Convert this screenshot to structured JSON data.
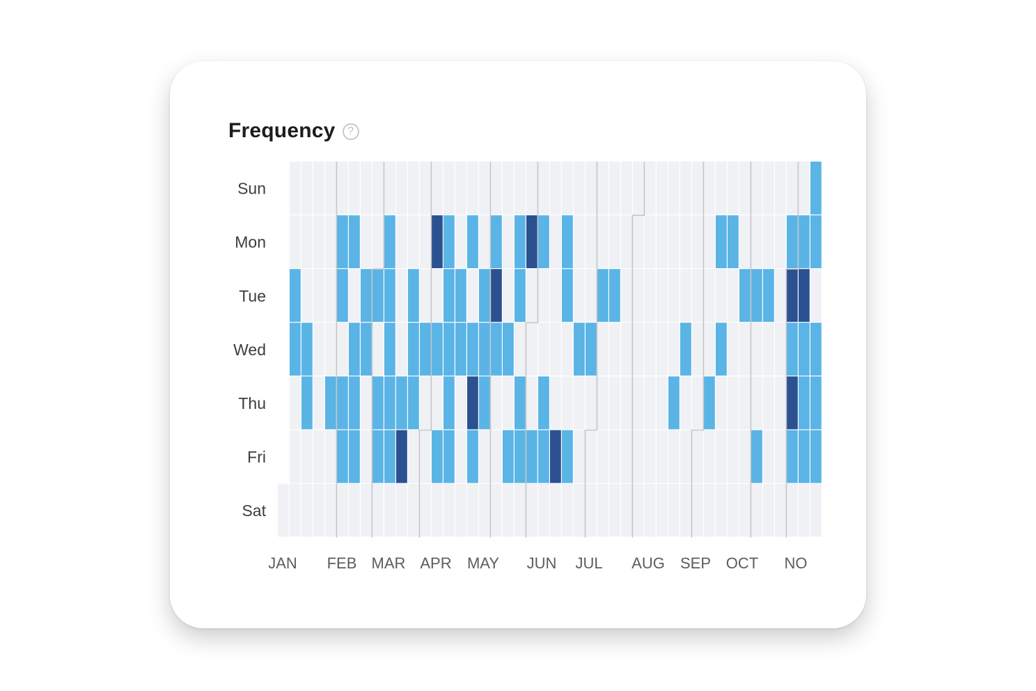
{
  "card": {
    "title": "Frequency",
    "help_icon": "question-circle-icon",
    "help_glyph": "?"
  },
  "chart_data": {
    "type": "heatmap",
    "title": "Frequency",
    "y_categories": [
      "Sun",
      "Mon",
      "Tue",
      "Wed",
      "Thu",
      "Fri",
      "Sat"
    ],
    "x_tick_labels": [
      "JAN",
      "FEB",
      "MAR",
      "APR",
      "MAY",
      "JUN",
      "JUL",
      "AUG",
      "SEP",
      "OCT",
      "NO"
    ],
    "weeks": 45,
    "legend": "none",
    "levels": {
      "0": "no activity",
      "1": "activity",
      "2": "high activity"
    },
    "colors": {
      "empty": "#eff1f5",
      "level_1": "#5ab4e6",
      "level_2": "#2b5191",
      "month_boundary": "#c4c6cb"
    },
    "values": [
      [
        0,
        0,
        0,
        0,
        0,
        0,
        0,
        0,
        0,
        0,
        0,
        0,
        0,
        0,
        0,
        0,
        0,
        0,
        0,
        0,
        0,
        0,
        0,
        0,
        0,
        0,
        0,
        0,
        0,
        0,
        0,
        0,
        0,
        0,
        0,
        0,
        0,
        0,
        0,
        0,
        0,
        0,
        0,
        0,
        1
      ],
      [
        0,
        0,
        0,
        0,
        1,
        1,
        0,
        0,
        1,
        0,
        0,
        0,
        2,
        1,
        0,
        1,
        0,
        1,
        0,
        1,
        2,
        1,
        0,
        1,
        0,
        0,
        0,
        0,
        0,
        0,
        0,
        0,
        0,
        0,
        0,
        0,
        1,
        1,
        0,
        0,
        0,
        0,
        1,
        1,
        1
      ],
      [
        1,
        0,
        0,
        0,
        1,
        0,
        1,
        1,
        1,
        0,
        1,
        0,
        0,
        1,
        1,
        0,
        1,
        2,
        0,
        1,
        0,
        0,
        0,
        1,
        0,
        0,
        1,
        1,
        0,
        0,
        0,
        0,
        0,
        0,
        0,
        0,
        0,
        0,
        1,
        1,
        1,
        0,
        2,
        2,
        0
      ],
      [
        1,
        1,
        0,
        0,
        0,
        1,
        1,
        0,
        1,
        0,
        1,
        1,
        1,
        1,
        1,
        1,
        1,
        1,
        1,
        0,
        0,
        0,
        0,
        0,
        1,
        1,
        0,
        0,
        0,
        0,
        0,
        0,
        0,
        1,
        0,
        0,
        1,
        0,
        0,
        0,
        0,
        0,
        1,
        1,
        1
      ],
      [
        0,
        1,
        0,
        1,
        1,
        1,
        0,
        1,
        1,
        1,
        1,
        0,
        0,
        1,
        0,
        2,
        1,
        0,
        0,
        1,
        0,
        1,
        0,
        0,
        0,
        0,
        0,
        0,
        0,
        0,
        0,
        0,
        1,
        0,
        0,
        1,
        0,
        0,
        0,
        0,
        0,
        0,
        2,
        1,
        1
      ],
      [
        0,
        0,
        0,
        0,
        1,
        1,
        0,
        1,
        1,
        2,
        0,
        0,
        1,
        1,
        0,
        1,
        0,
        0,
        1,
        1,
        1,
        1,
        2,
        1,
        0,
        0,
        0,
        0,
        0,
        0,
        0,
        0,
        0,
        0,
        0,
        0,
        0,
        0,
        0,
        1,
        0,
        0,
        1,
        1,
        1
      ],
      [
        0,
        0,
        0,
        0,
        0,
        0,
        0,
        0,
        0,
        0,
        0,
        0,
        0,
        0,
        0,
        0,
        0,
        0,
        0,
        0,
        0,
        0,
        0,
        0,
        0,
        0,
        0,
        0,
        0,
        0,
        0,
        0,
        0,
        0,
        0,
        0,
        0,
        0,
        0,
        0,
        0,
        0,
        0,
        0,
        0
      ]
    ]
  }
}
